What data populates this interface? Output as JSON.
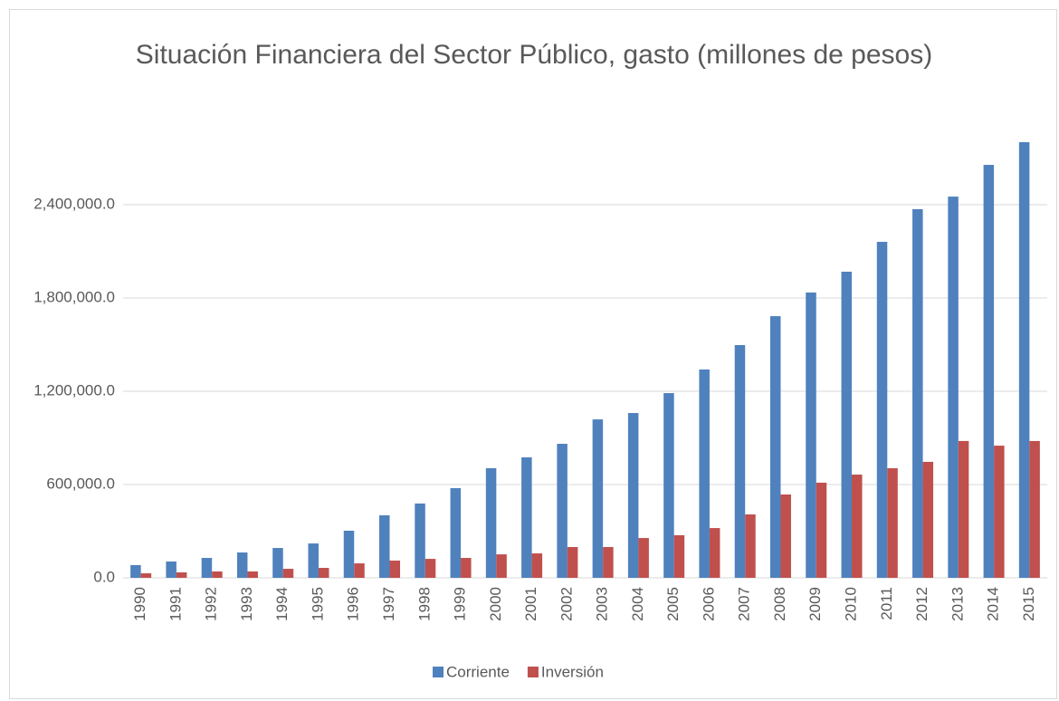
{
  "chart_data": {
    "type": "bar",
    "title": "Situación Financiera del Sector Público, gasto (millones de pesos)",
    "categories": [
      "1990",
      "1991",
      "1992",
      "1993",
      "1994",
      "1995",
      "1996",
      "1997",
      "1998",
      "1999",
      "2000",
      "2001",
      "2002",
      "2003",
      "2004",
      "2005",
      "2006",
      "2007",
      "2008",
      "2009",
      "2010",
      "2011",
      "2012",
      "2013",
      "2014",
      "2015"
    ],
    "series": [
      {
        "name": "Corriente",
        "color": "#4f81bd",
        "values": [
          82000,
          105000,
          128000,
          163000,
          192000,
          221000,
          303000,
          402000,
          478000,
          577000,
          705000,
          775000,
          862000,
          1019000,
          1060000,
          1188000,
          1340000,
          1497000,
          1683000,
          1835000,
          1969000,
          2161000,
          2371000,
          2452000,
          2656000,
          2802000
        ]
      },
      {
        "name": "Inversión",
        "color": "#c0504d",
        "values": [
          29000,
          35000,
          41000,
          41000,
          58000,
          64000,
          93000,
          111000,
          122000,
          128000,
          151000,
          157000,
          198000,
          198000,
          256000,
          274000,
          320000,
          408000,
          536000,
          612000,
          664000,
          705000,
          746000,
          880000,
          850000,
          880000
        ]
      }
    ],
    "ylim": [
      0,
      3000000
    ],
    "yticks": [
      {
        "value": 0,
        "label": "0.0"
      },
      {
        "value": 600000,
        "label": "600,000.0"
      },
      {
        "value": 1200000,
        "label": "1,200,000.0"
      },
      {
        "value": 1800000,
        "label": "1,800,000.0"
      },
      {
        "value": 2400000,
        "label": "2,400,000.0"
      }
    ],
    "grid": true,
    "legend": "bottom"
  }
}
